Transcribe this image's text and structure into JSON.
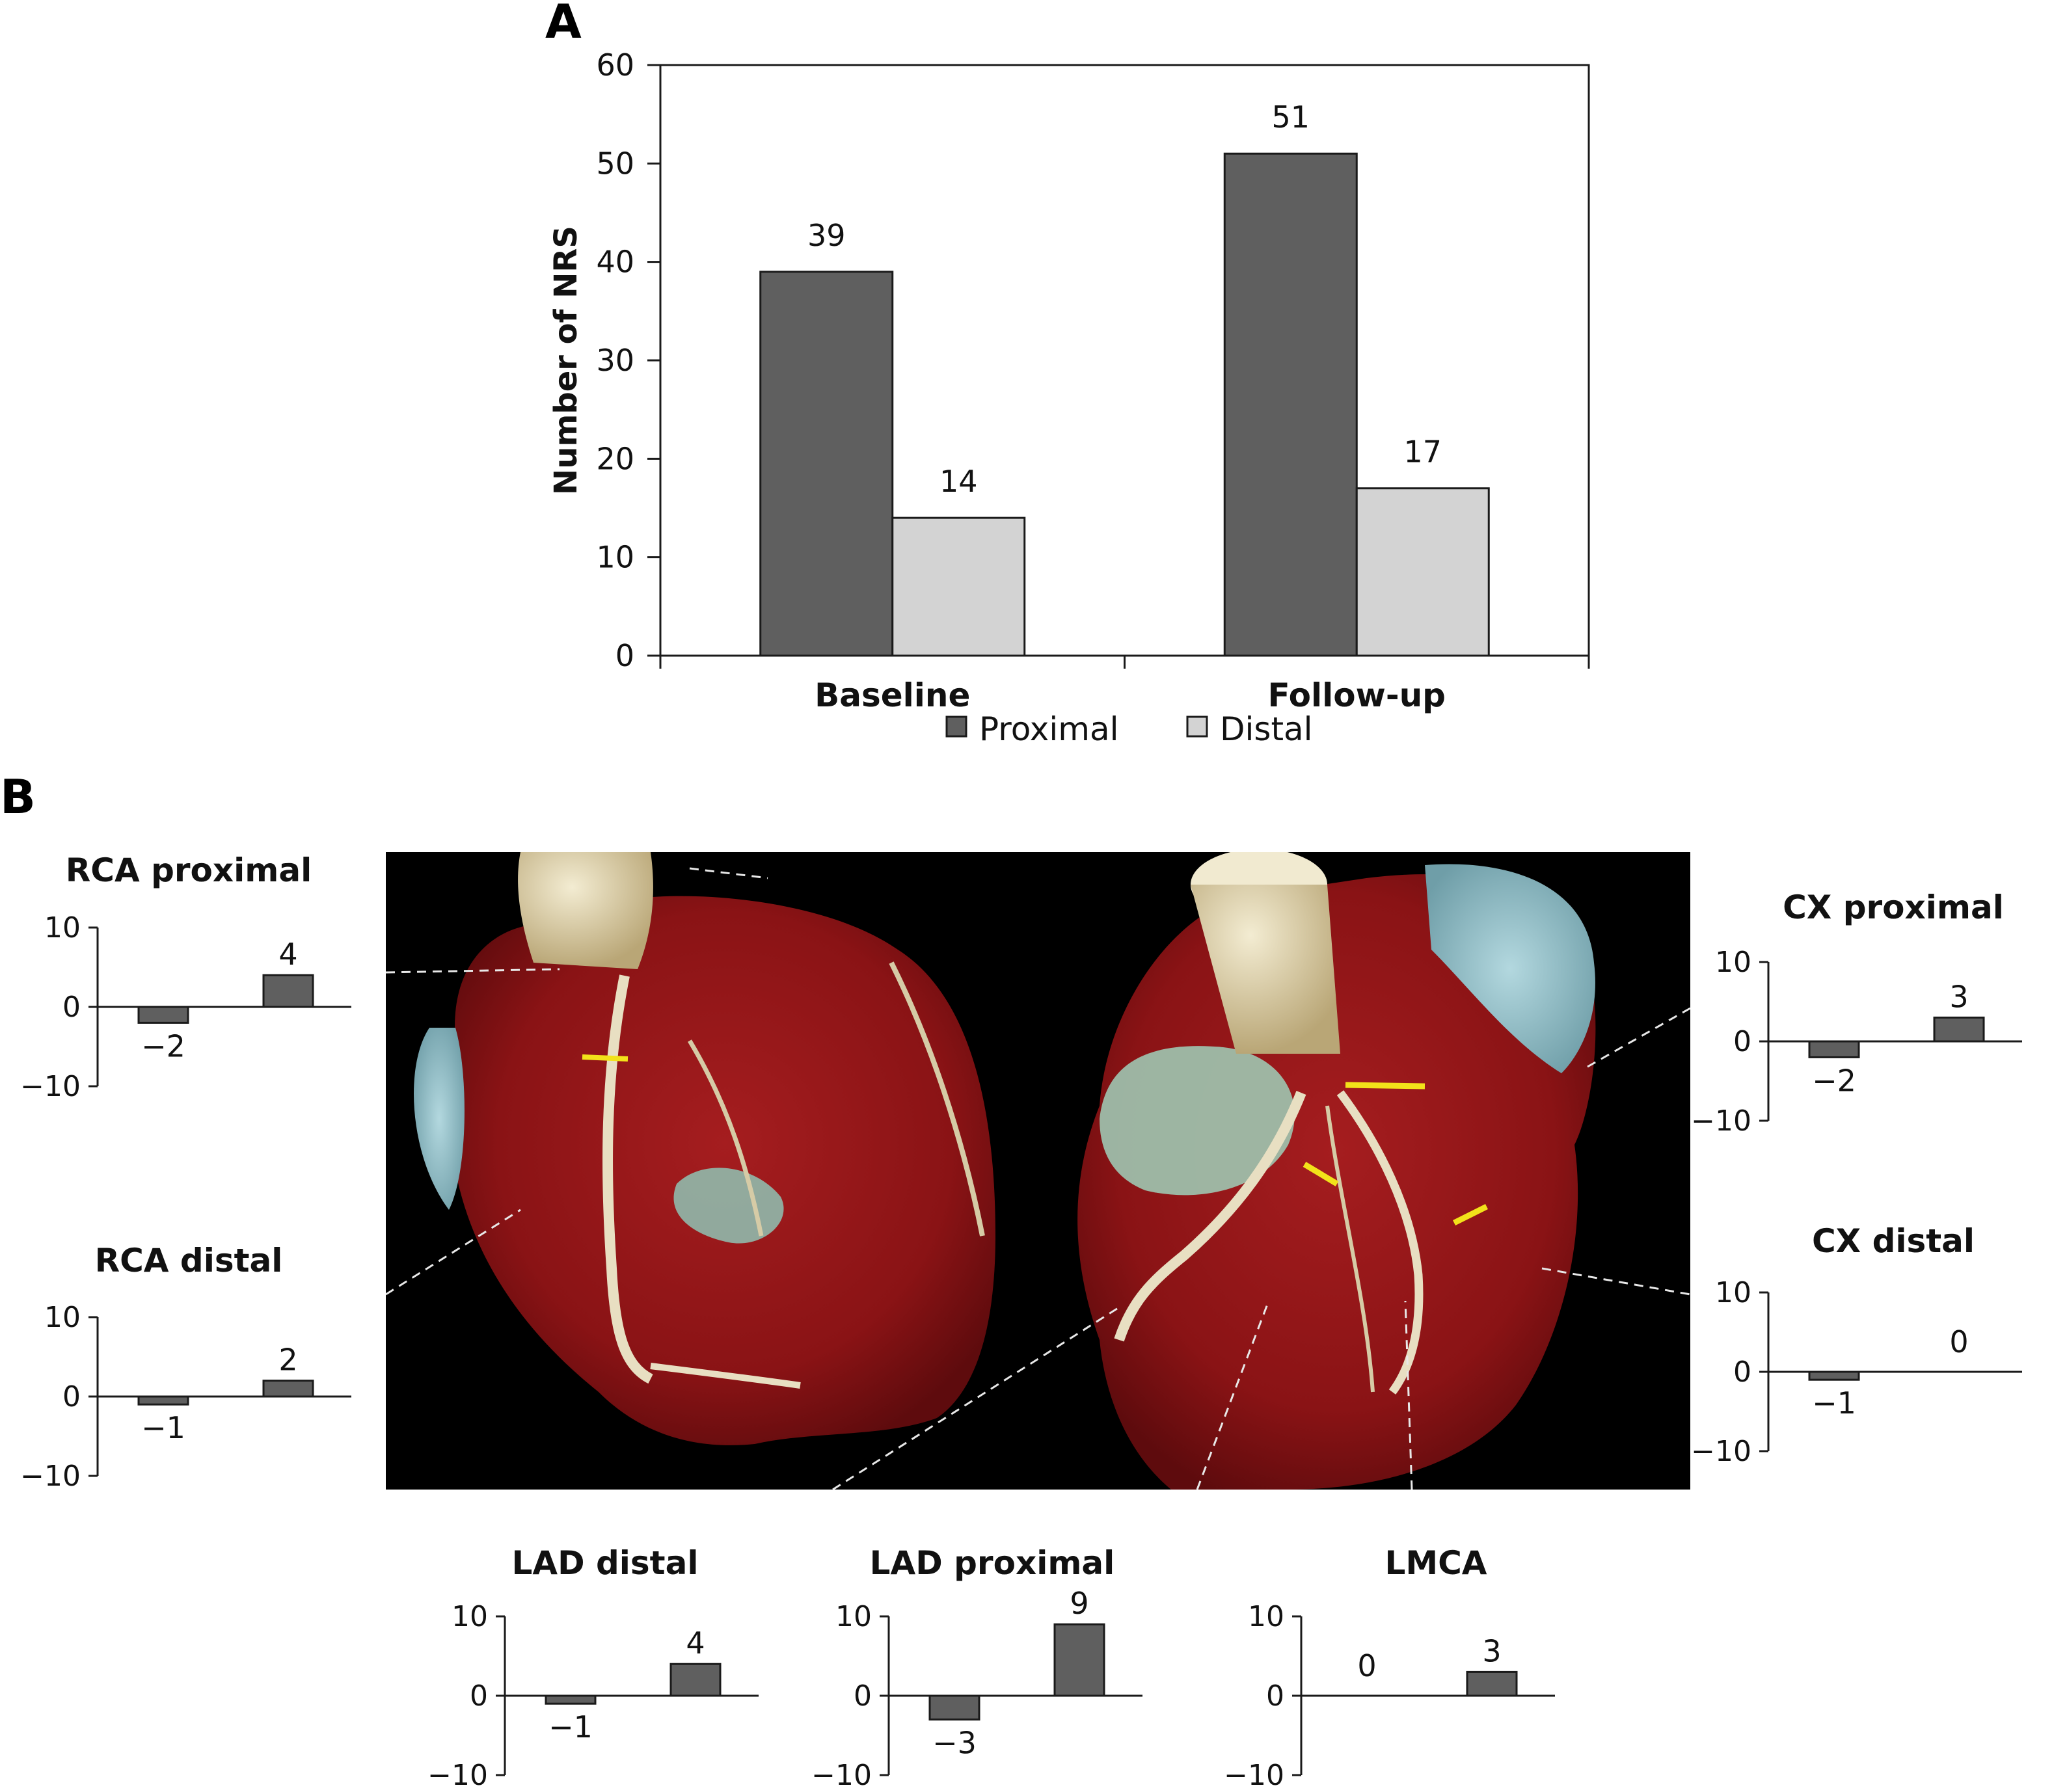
{
  "panels": {
    "a_label": "A",
    "b_label": "B"
  },
  "colors": {
    "proximal": "#5f5f5f",
    "distal": "#d3d3d3",
    "axis": "#1a1a1a",
    "heart_muscle": "#8e1416",
    "aorta": "#d9cfa6",
    "chamber_blue": "#8fbcc8",
    "marker": "#f2e21a"
  },
  "image": {
    "description_icon": "coronary-ct-heart-image"
  },
  "chart_data": [
    {
      "id": "A",
      "type": "bar",
      "categories": [
        "Baseline",
        "Follow-up"
      ],
      "series": [
        {
          "name": "Proximal",
          "values": [
            39,
            51
          ]
        },
        {
          "name": "Distal",
          "values": [
            14,
            17
          ]
        }
      ],
      "ylabel": "Number of NRS",
      "xlabel": "",
      "ylim": [
        0,
        60
      ],
      "yticks": [
        0,
        10,
        20,
        30,
        40,
        50,
        60
      ],
      "legend": "bottom"
    },
    {
      "id": "rca-proximal",
      "type": "bar",
      "title": "RCA proximal",
      "values": [
        -2,
        4
      ],
      "value_labels": [
        "−2",
        "4"
      ],
      "ylim": [
        -10,
        10
      ],
      "yticks": [
        "10",
        "0",
        "−10"
      ]
    },
    {
      "id": "rca-distal",
      "type": "bar",
      "title": "RCA distal",
      "values": [
        -1,
        2
      ],
      "value_labels": [
        "−1",
        "2"
      ],
      "ylim": [
        -10,
        10
      ],
      "yticks": [
        "10",
        "0",
        "−10"
      ]
    },
    {
      "id": "cx-proximal",
      "type": "bar",
      "title": "CX proximal",
      "values": [
        -2,
        3
      ],
      "value_labels": [
        "−2",
        "3"
      ],
      "ylim": [
        -10,
        10
      ],
      "yticks": [
        "10",
        "0",
        "−10"
      ]
    },
    {
      "id": "cx-distal",
      "type": "bar",
      "title": "CX distal",
      "values": [
        -1,
        0
      ],
      "value_labels": [
        "−1",
        "0"
      ],
      "ylim": [
        -10,
        10
      ],
      "yticks": [
        "10",
        "0",
        "−10"
      ]
    },
    {
      "id": "lad-distal",
      "type": "bar",
      "title": "LAD distal",
      "values": [
        -1,
        4
      ],
      "value_labels": [
        "−1",
        "4"
      ],
      "ylim": [
        -10,
        10
      ],
      "yticks": [
        "10",
        "0",
        "−10"
      ]
    },
    {
      "id": "lad-proximal",
      "type": "bar",
      "title": "LAD proximal",
      "values": [
        -3,
        9
      ],
      "value_labels": [
        "−3",
        "9"
      ],
      "ylim": [
        -10,
        10
      ],
      "yticks": [
        "10",
        "0",
        "−10"
      ]
    },
    {
      "id": "lmca",
      "type": "bar",
      "title": "LMCA",
      "values": [
        0,
        3
      ],
      "value_labels": [
        "0",
        "3"
      ],
      "ylim": [
        -10,
        10
      ],
      "yticks": [
        "10",
        "0",
        "−10"
      ]
    }
  ]
}
